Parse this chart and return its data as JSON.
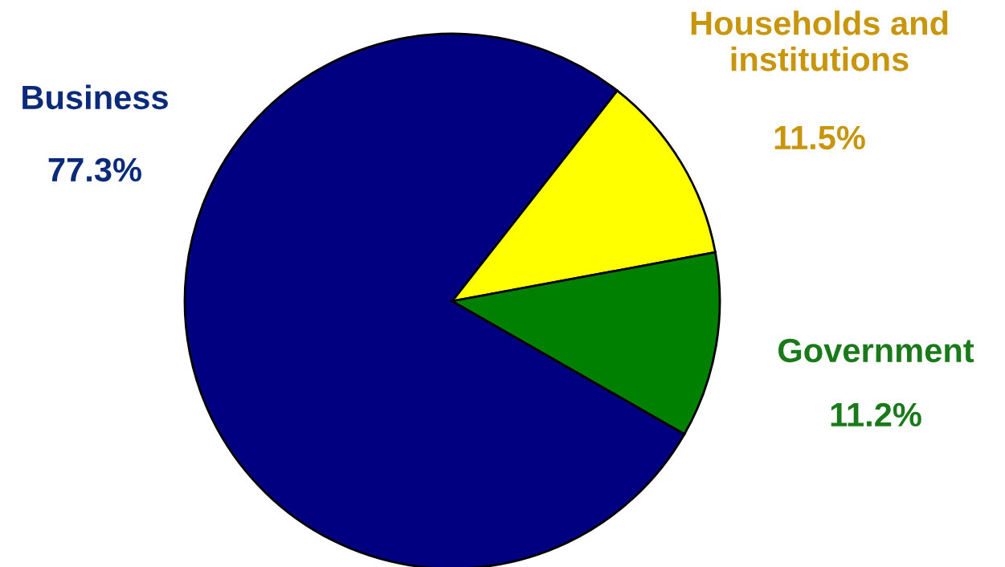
{
  "chart_data": {
    "type": "pie",
    "categories": [
      "Business",
      "Households and\ninstitutions",
      "Government"
    ],
    "values": [
      77.3,
      11.5,
      11.2
    ],
    "colors": [
      "#000080",
      "#ffff00",
      "#008000"
    ],
    "value_labels": [
      "77.3%",
      "11.5%",
      "11.2%"
    ]
  }
}
